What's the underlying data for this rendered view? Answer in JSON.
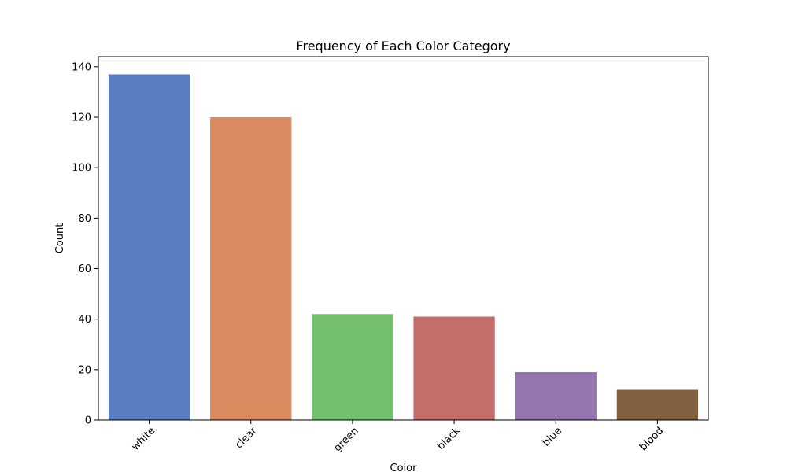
{
  "chart_data": {
    "type": "bar",
    "title": "Frequency of Each Color Category",
    "xlabel": "Color",
    "ylabel": "Count",
    "categories": [
      "white",
      "clear",
      "green",
      "black",
      "blue",
      "blood"
    ],
    "values": [
      137,
      120,
      42,
      41,
      19,
      12
    ],
    "colors": [
      "#5a7ec1",
      "#d98b5f",
      "#74bf6f",
      "#c46e6c",
      "#9475ad",
      "#81613f"
    ],
    "ylim": [
      0,
      144
    ],
    "yticks": [
      0,
      20,
      40,
      60,
      80,
      100,
      120,
      140
    ],
    "grid": false,
    "legend": "none",
    "xtick_rotation": 45
  }
}
